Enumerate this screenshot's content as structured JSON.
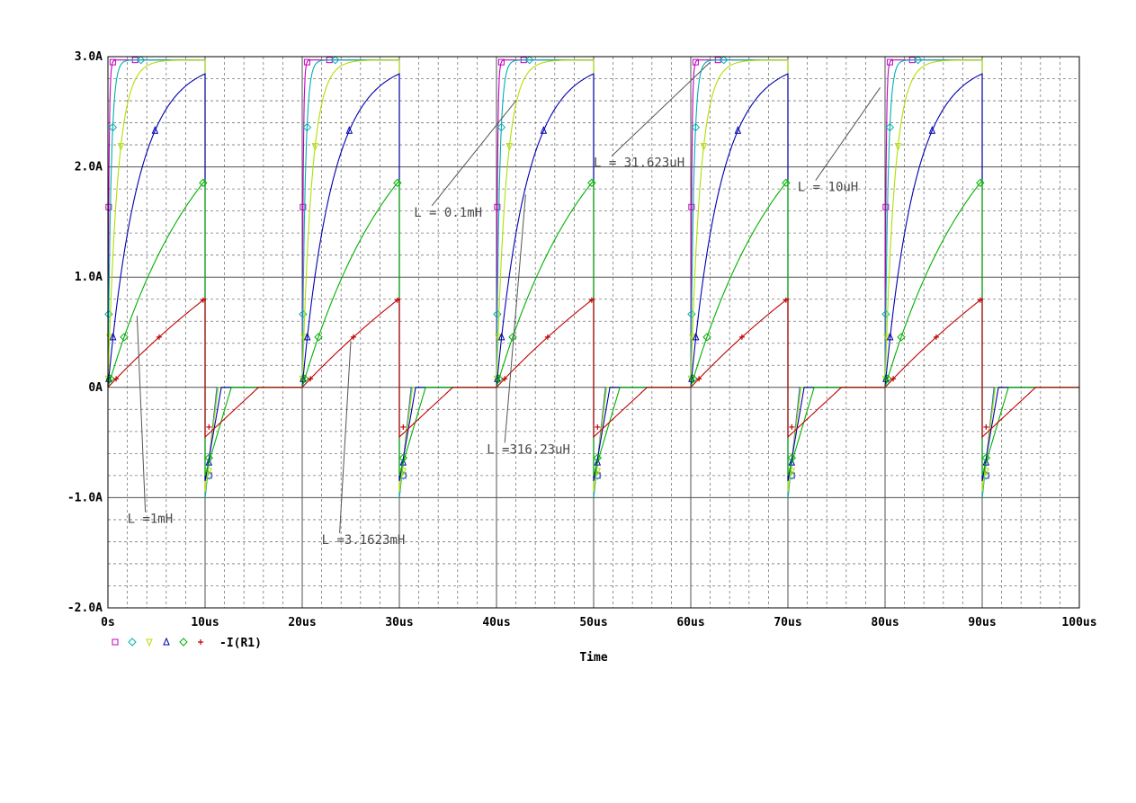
{
  "chart_data": {
    "type": "line",
    "xlabel": "Time",
    "ylabel": "",
    "xlim": [
      0,
      100
    ],
    "ylim": [
      -2.0,
      3.0
    ],
    "x_unit": "us",
    "y_unit": "A",
    "grid": true,
    "x_ticks": [
      {
        "v": 0,
        "label": "0s"
      },
      {
        "v": 10,
        "label": "10us"
      },
      {
        "v": 20,
        "label": "20us"
      },
      {
        "v": 30,
        "label": "30us"
      },
      {
        "v": 40,
        "label": "40us"
      },
      {
        "v": 50,
        "label": "50us"
      },
      {
        "v": 60,
        "label": "60us"
      },
      {
        "v": 70,
        "label": "70us"
      },
      {
        "v": 80,
        "label": "80us"
      },
      {
        "v": 90,
        "label": "90us"
      },
      {
        "v": 100,
        "label": "100us"
      }
    ],
    "y_ticks": [
      {
        "v": 3,
        "label": "3.0A"
      },
      {
        "v": 2,
        "label": "2.0A"
      },
      {
        "v": 1,
        "label": "1.0A"
      },
      {
        "v": 0,
        "label": "0A"
      },
      {
        "v": -1,
        "label": "-1.0A"
      },
      {
        "v": -2,
        "label": "-2.0A"
      }
    ],
    "pulse": {
      "period": 20,
      "on_time": 10,
      "sim_end": 100,
      "steady_current": 2.97
    },
    "series": [
      {
        "color": "#c000c0",
        "marker": "square",
        "tau_us": 0.1,
        "end_current": 2.97,
        "neg_peak": -1.0
      },
      {
        "color": "#00b0b0",
        "marker": "diamond",
        "tau_us": 0.3162,
        "end_current": 2.97,
        "neg_peak": -1.0
      },
      {
        "color": "#b0e000",
        "marker": "triangle-down",
        "tau_us": 1.0,
        "end_current": 2.97,
        "neg_peak": -0.95
      },
      {
        "color": "#0000b0",
        "marker": "triangle-up",
        "tau_us": 3.162,
        "end_current": 2.85,
        "neg_peak": -0.85
      },
      {
        "color": "#00b000",
        "marker": "diamond",
        "tau_us": 10.0,
        "end_current": 1.88,
        "neg_peak": -0.8
      },
      {
        "color": "#c00000",
        "marker": "plus",
        "tau_us": 31.62,
        "end_current": 0.81,
        "neg_peak": -0.45
      }
    ],
    "legend": {
      "placement": "bottom-left",
      "label": "-I(R1)"
    },
    "annotations": [
      {
        "text": "L = 0.1mH",
        "x": 31.5,
        "y": 1.55,
        "arrow_to": [
          42.0,
          2.6
        ]
      },
      {
        "text": "L = 31.623uH",
        "x": 50.0,
        "y": 2.0,
        "arrow_to": [
          62.0,
          2.95
        ]
      },
      {
        "text": "L = 10uH",
        "x": 71.0,
        "y": 1.78,
        "arrow_to": [
          79.5,
          2.72
        ]
      },
      {
        "text": "L =316.23uH",
        "x": 39.0,
        "y": -0.6,
        "arrow_to": [
          43.0,
          1.75
        ]
      },
      {
        "text": "L =1mH",
        "x": 2.0,
        "y": -1.23,
        "arrow_to": [
          3.0,
          0.65
        ]
      },
      {
        "text": "L =3.1623mH",
        "x": 22.0,
        "y": -1.42,
        "arrow_to": [
          25.0,
          0.42
        ]
      }
    ]
  }
}
